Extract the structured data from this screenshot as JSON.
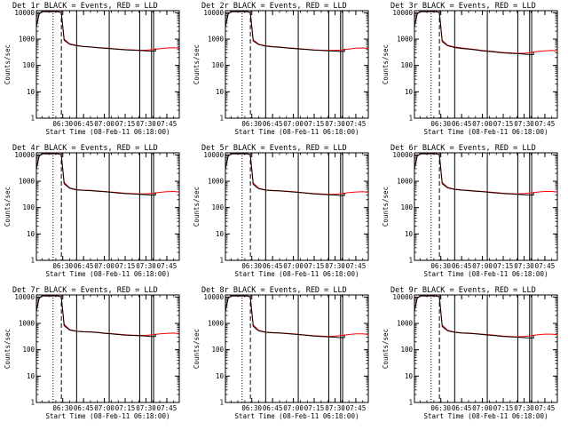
{
  "chart_data": {
    "type": "line",
    "x_tick_labels": [
      "06:30",
      "06:45",
      "07:00",
      "07:15",
      "07:30",
      "07:45"
    ],
    "x_tick_minutes": [
      30,
      45,
      60,
      75,
      90,
      105
    ],
    "xlim_minutes": [
      11,
      114
    ],
    "x_reference_time": "06:00",
    "ylabel": "Counts/sec",
    "xlabel": "Start Time (08-Feb-11 06:18:00)",
    "y_scale": "log",
    "ylim": [
      1,
      12000
    ],
    "y_tick_labels": [
      "1",
      "10",
      "100",
      "1000",
      "10000"
    ],
    "y_tick_values": [
      1,
      10,
      100,
      1000,
      10000
    ],
    "legend_text": "BLACK = Events, RED = LLD",
    "colors": {
      "events": "#000000",
      "lld": "#ff0000",
      "axes": "#000000"
    },
    "markers": {
      "dotted_minutes": 23,
      "dashed_minutes": 29,
      "solid_minutes": [
        40,
        63.5,
        85.5
      ],
      "double_solid_minutes": [
        94,
        95.5
      ]
    },
    "panels": [
      {
        "title": "Det 1r",
        "events": {
          "x": [
            11,
            13,
            15,
            17,
            19,
            21,
            23,
            25,
            27,
            29,
            31,
            35,
            40,
            45,
            50,
            55,
            60,
            65,
            70,
            75,
            80,
            85,
            90,
            93
          ],
          "y": [
            3000,
            9000,
            11000,
            11000,
            11000,
            11000,
            11000,
            11000,
            11000,
            10000,
            900,
            640,
            560,
            520,
            500,
            470,
            450,
            430,
            410,
            390,
            380,
            370,
            360,
            350
          ]
        },
        "lld": {
          "x": [
            11,
            13,
            15,
            17,
            19,
            21,
            23,
            25,
            27,
            29,
            31,
            35,
            40,
            45,
            50,
            55,
            60,
            65,
            70,
            75,
            80,
            85,
            90,
            95,
            100,
            105,
            110,
            114
          ],
          "y": [
            3000,
            9000,
            11000,
            11000,
            11000,
            11000,
            11000,
            11000,
            11000,
            10000,
            1000,
            660,
            580,
            530,
            510,
            480,
            460,
            440,
            420,
            400,
            390,
            380,
            380,
            400,
            430,
            460,
            470,
            450
          ]
        }
      },
      {
        "title": "Det 2r",
        "events": {
          "x": [
            11,
            13,
            15,
            17,
            19,
            21,
            23,
            25,
            27,
            29,
            31,
            35,
            40,
            45,
            50,
            55,
            60,
            65,
            70,
            75,
            80,
            85,
            90,
            93
          ],
          "y": [
            3000,
            9000,
            11000,
            11000,
            11000,
            11000,
            11000,
            11000,
            11000,
            10000,
            850,
            620,
            540,
            510,
            490,
            460,
            440,
            420,
            400,
            380,
            370,
            360,
            350,
            340
          ]
        },
        "lld": {
          "x": [
            11,
            13,
            15,
            17,
            19,
            21,
            23,
            25,
            27,
            29,
            31,
            35,
            40,
            45,
            50,
            55,
            60,
            65,
            70,
            75,
            80,
            85,
            90,
            95,
            100,
            105,
            110,
            114
          ],
          "y": [
            3000,
            9000,
            11000,
            11000,
            11000,
            11000,
            11000,
            11000,
            11000,
            10000,
            950,
            640,
            560,
            520,
            500,
            470,
            450,
            430,
            410,
            390,
            380,
            370,
            370,
            390,
            420,
            450,
            460,
            440
          ]
        }
      },
      {
        "title": "Det 3r",
        "events": {
          "x": [
            11,
            13,
            15,
            17,
            19,
            21,
            23,
            25,
            27,
            29,
            31,
            35,
            40,
            45,
            50,
            55,
            60,
            65,
            70,
            75,
            80,
            85,
            90,
            93
          ],
          "y": [
            3000,
            9000,
            11000,
            11000,
            11000,
            11000,
            11000,
            11000,
            11000,
            10000,
            800,
            560,
            480,
            440,
            420,
            390,
            360,
            340,
            320,
            300,
            290,
            280,
            270,
            260
          ]
        },
        "lld": {
          "x": [
            11,
            13,
            15,
            17,
            19,
            21,
            23,
            25,
            27,
            29,
            31,
            35,
            40,
            45,
            50,
            55,
            60,
            65,
            70,
            75,
            80,
            85,
            90,
            95,
            100,
            105,
            110,
            114
          ],
          "y": [
            3000,
            9000,
            11000,
            11000,
            11000,
            11000,
            11000,
            11000,
            11000,
            10000,
            900,
            580,
            500,
            460,
            430,
            400,
            370,
            350,
            330,
            310,
            300,
            290,
            290,
            310,
            340,
            360,
            370,
            350
          ]
        }
      },
      {
        "title": "Det 4r",
        "events": {
          "x": [
            11,
            13,
            15,
            17,
            19,
            21,
            23,
            25,
            27,
            29,
            31,
            35,
            40,
            45,
            50,
            55,
            60,
            65,
            70,
            75,
            80,
            85,
            90,
            93
          ],
          "y": [
            3000,
            9000,
            11000,
            11000,
            11000,
            11000,
            11000,
            11000,
            11000,
            10000,
            800,
            540,
            470,
            450,
            440,
            420,
            400,
            380,
            360,
            340,
            330,
            320,
            310,
            300
          ]
        },
        "lld": {
          "x": [
            11,
            13,
            15,
            17,
            19,
            21,
            23,
            25,
            27,
            29,
            31,
            35,
            40,
            45,
            50,
            55,
            60,
            65,
            70,
            75,
            80,
            85,
            90,
            95,
            100,
            105,
            110,
            114
          ],
          "y": [
            3000,
            9000,
            11000,
            11000,
            11000,
            11000,
            11000,
            11000,
            11000,
            10000,
            900,
            560,
            480,
            460,
            450,
            430,
            410,
            390,
            370,
            350,
            340,
            330,
            330,
            350,
            380,
            400,
            410,
            390
          ]
        }
      },
      {
        "title": "Det 5r",
        "events": {
          "x": [
            11,
            13,
            15,
            17,
            19,
            21,
            23,
            25,
            27,
            29,
            31,
            35,
            40,
            45,
            50,
            55,
            60,
            65,
            70,
            75,
            80,
            85,
            90,
            93
          ],
          "y": [
            3000,
            9000,
            11000,
            11000,
            11000,
            11000,
            11000,
            11000,
            11000,
            10000,
            760,
            520,
            460,
            440,
            430,
            410,
            390,
            370,
            350,
            330,
            320,
            310,
            300,
            290
          ]
        },
        "lld": {
          "x": [
            11,
            13,
            15,
            17,
            19,
            21,
            23,
            25,
            27,
            29,
            31,
            35,
            40,
            45,
            50,
            55,
            60,
            65,
            70,
            75,
            80,
            85,
            90,
            95,
            100,
            105,
            110,
            114
          ],
          "y": [
            3000,
            9000,
            11000,
            11000,
            11000,
            11000,
            11000,
            11000,
            11000,
            10000,
            860,
            540,
            470,
            450,
            440,
            420,
            400,
            380,
            360,
            340,
            330,
            320,
            320,
            340,
            370,
            390,
            400,
            380
          ]
        }
      },
      {
        "title": "Det 6r",
        "events": {
          "x": [
            11,
            13,
            15,
            17,
            19,
            21,
            23,
            25,
            27,
            29,
            31,
            35,
            40,
            45,
            50,
            55,
            60,
            65,
            70,
            75,
            80,
            85,
            90,
            93
          ],
          "y": [
            3000,
            9000,
            11000,
            11000,
            11000,
            11000,
            11000,
            11000,
            11000,
            10000,
            800,
            560,
            490,
            460,
            440,
            420,
            400,
            380,
            360,
            340,
            330,
            320,
            310,
            300
          ]
        },
        "lld": {
          "x": [
            11,
            13,
            15,
            17,
            19,
            21,
            23,
            25,
            27,
            29,
            31,
            35,
            40,
            45,
            50,
            55,
            60,
            65,
            70,
            75,
            80,
            85,
            90,
            95,
            100,
            105,
            110,
            114
          ],
          "y": [
            3000,
            9000,
            11000,
            11000,
            11000,
            11000,
            11000,
            11000,
            11000,
            10000,
            900,
            580,
            500,
            470,
            450,
            430,
            410,
            390,
            370,
            350,
            340,
            330,
            340,
            360,
            390,
            410,
            410,
            390
          ]
        }
      },
      {
        "title": "Det 7r",
        "events": {
          "x": [
            11,
            13,
            15,
            17,
            19,
            21,
            23,
            25,
            27,
            29,
            31,
            35,
            40,
            45,
            50,
            55,
            60,
            65,
            70,
            75,
            80,
            85,
            90,
            93
          ],
          "y": [
            3000,
            9000,
            11000,
            11000,
            11000,
            11000,
            11000,
            11000,
            11000,
            10000,
            820,
            560,
            500,
            480,
            470,
            450,
            420,
            400,
            380,
            360,
            350,
            340,
            330,
            320
          ]
        },
        "lld": {
          "x": [
            11,
            13,
            15,
            17,
            19,
            21,
            23,
            25,
            27,
            29,
            31,
            35,
            40,
            45,
            50,
            55,
            60,
            65,
            70,
            75,
            80,
            85,
            90,
            95,
            100,
            105,
            110,
            114
          ],
          "y": [
            3000,
            9000,
            11000,
            11000,
            11000,
            11000,
            11000,
            11000,
            11000,
            10000,
            920,
            580,
            510,
            490,
            480,
            460,
            430,
            410,
            390,
            370,
            360,
            350,
            350,
            370,
            400,
            420,
            430,
            410
          ]
        }
      },
      {
        "title": "Det 8r",
        "events": {
          "x": [
            11,
            13,
            15,
            17,
            19,
            21,
            23,
            25,
            27,
            29,
            31,
            35,
            40,
            45,
            50,
            55,
            60,
            65,
            70,
            75,
            80,
            85,
            90,
            93
          ],
          "y": [
            3000,
            9000,
            11000,
            11000,
            11000,
            11000,
            11000,
            11000,
            11000,
            10000,
            780,
            520,
            460,
            440,
            430,
            410,
            390,
            370,
            350,
            330,
            320,
            310,
            300,
            290
          ]
        },
        "lld": {
          "x": [
            11,
            13,
            15,
            17,
            19,
            21,
            23,
            25,
            27,
            29,
            31,
            35,
            40,
            45,
            50,
            55,
            60,
            65,
            70,
            75,
            80,
            85,
            90,
            95,
            100,
            105,
            110,
            114
          ],
          "y": [
            3000,
            9000,
            11000,
            11000,
            11000,
            11000,
            11000,
            11000,
            11000,
            10000,
            880,
            540,
            470,
            450,
            440,
            420,
            400,
            380,
            360,
            340,
            330,
            320,
            330,
            350,
            380,
            400,
            400,
            380
          ]
        }
      },
      {
        "title": "Det 9r",
        "events": {
          "x": [
            11,
            13,
            15,
            17,
            19,
            21,
            23,
            25,
            27,
            29,
            31,
            35,
            40,
            45,
            50,
            55,
            60,
            65,
            70,
            75,
            80,
            85,
            90,
            93
          ],
          "y": [
            3000,
            9000,
            11000,
            11000,
            11000,
            11000,
            11000,
            11000,
            11000,
            10000,
            760,
            520,
            460,
            430,
            420,
            400,
            380,
            360,
            340,
            320,
            310,
            300,
            290,
            280
          ]
        },
        "lld": {
          "x": [
            11,
            13,
            15,
            17,
            19,
            21,
            23,
            25,
            27,
            29,
            31,
            35,
            40,
            45,
            50,
            55,
            60,
            65,
            70,
            75,
            80,
            85,
            90,
            95,
            100,
            105,
            110,
            114
          ],
          "y": [
            3000,
            9000,
            11000,
            11000,
            11000,
            11000,
            11000,
            11000,
            11000,
            10000,
            860,
            540,
            470,
            440,
            430,
            410,
            390,
            370,
            350,
            330,
            320,
            310,
            320,
            340,
            370,
            390,
            390,
            370
          ]
        }
      }
    ]
  }
}
